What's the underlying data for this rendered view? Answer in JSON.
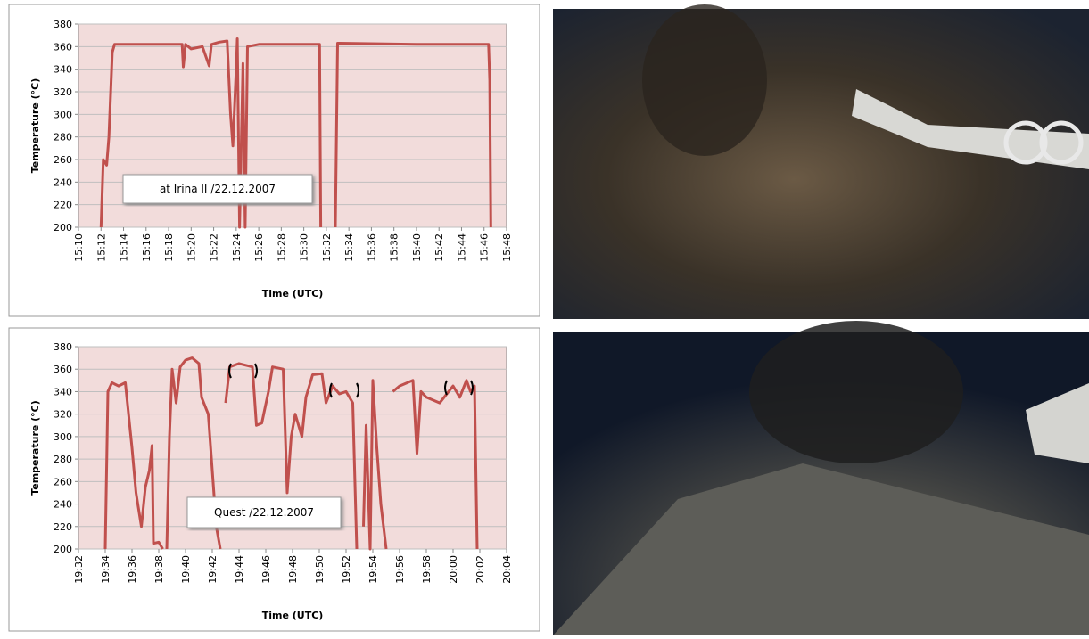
{
  "chart_data": [
    {
      "type": "line",
      "color": "#c0504d",
      "ylabel": "Temperature (°C)",
      "xlabel": "Time (UTC)",
      "annotation": "at Irina II /22.12.2007",
      "xlim": [
        910,
        948
      ],
      "ylim": [
        200,
        380
      ],
      "yticks": [
        200,
        220,
        240,
        260,
        280,
        300,
        320,
        340,
        360,
        380
      ],
      "xticks": [
        {
          "value": 910,
          "label": "15:10"
        },
        {
          "value": 912,
          "label": "15:12"
        },
        {
          "value": 914,
          "label": "15:14"
        },
        {
          "value": 916,
          "label": "15:16"
        },
        {
          "value": 918,
          "label": "15:18"
        },
        {
          "value": 920,
          "label": "15:20"
        },
        {
          "value": 922,
          "label": "15:22"
        },
        {
          "value": 924,
          "label": "15:24"
        },
        {
          "value": 926,
          "label": "15:26"
        },
        {
          "value": 928,
          "label": "15:28"
        },
        {
          "value": 930,
          "label": "15:30"
        },
        {
          "value": 932,
          "label": "15:32"
        },
        {
          "value": 934,
          "label": "15:34"
        },
        {
          "value": 936,
          "label": "15:36"
        },
        {
          "value": 938,
          "label": "15:38"
        },
        {
          "value": 940,
          "label": "15:40"
        },
        {
          "value": 942,
          "label": "15:42"
        },
        {
          "value": 944,
          "label": "15:44"
        },
        {
          "value": 946,
          "label": "15:46"
        },
        {
          "value": 948,
          "label": "15:48"
        }
      ],
      "x": [
        912.0,
        912.2,
        912.5,
        912.7,
        913.0,
        913.2,
        919.2,
        919.3,
        919.5,
        920.0,
        921.0,
        921.6,
        921.8,
        922.5,
        923.2,
        923.5,
        923.7,
        924.0,
        924.1,
        924.3,
        924.6,
        924.8,
        925.0,
        926.0,
        931.4,
        931.5,
        932.0,
        932.8,
        933.0,
        940.0,
        946.4,
        946.5,
        946.6
      ],
      "values": [
        200,
        260,
        255,
        280,
        355,
        362,
        362,
        342,
        362,
        358,
        360,
        343,
        362,
        364,
        365,
        300,
        272,
        340,
        367,
        200,
        345,
        200,
        360,
        362,
        362,
        200,
        null,
        200,
        363,
        362,
        362,
        330,
        200
      ]
    },
    {
      "type": "line",
      "color": "#c0504d",
      "ylabel": "Temperature (°C)",
      "xlabel": "Time (UTC)",
      "annotation": "Quest /22.12.2007",
      "xlim": [
        1172,
        1204
      ],
      "ylim": [
        200,
        380
      ],
      "yticks": [
        200,
        220,
        240,
        260,
        280,
        300,
        320,
        340,
        360,
        380
      ],
      "xticks": [
        {
          "value": 1172,
          "label": "19:32"
        },
        {
          "value": 1174,
          "label": "19:34"
        },
        {
          "value": 1176,
          "label": "19:36"
        },
        {
          "value": 1178,
          "label": "19:38"
        },
        {
          "value": 1180,
          "label": "19:40"
        },
        {
          "value": 1182,
          "label": "19:42"
        },
        {
          "value": 1184,
          "label": "19:44"
        },
        {
          "value": 1186,
          "label": "19:46"
        },
        {
          "value": 1188,
          "label": "19:48"
        },
        {
          "value": 1190,
          "label": "19:50"
        },
        {
          "value": 1192,
          "label": "19:52"
        },
        {
          "value": 1194,
          "label": "19:54"
        },
        {
          "value": 1196,
          "label": "19:56"
        },
        {
          "value": 1198,
          "label": "19:58"
        },
        {
          "value": 1200,
          "label": "20:00"
        },
        {
          "value": 1202,
          "label": "20:02"
        },
        {
          "value": 1204,
          "label": "20:04"
        }
      ],
      "x": [
        1174.0,
        1174.2,
        1174.5,
        1175.0,
        1175.5,
        1176.0,
        1176.3,
        1176.7,
        1177.0,
        1177.3,
        1177.5,
        1177.6,
        1178.0,
        1178.3,
        1178.45,
        1178.6,
        1178.8,
        1179.0,
        1179.3,
        1179.6,
        1180.0,
        1180.5,
        1181.0,
        1181.2,
        1181.7,
        1182.0,
        1182.3,
        1182.6,
        1182.8,
        1183.0,
        1183.3,
        1184.0,
        1185.0,
        1185.3,
        1185.7,
        1186.2,
        1186.5,
        1187.3,
        1187.6,
        1187.9,
        1188.2,
        1188.7,
        1189.0,
        1189.5,
        1190.2,
        1190.5,
        1191.0,
        1191.5,
        1192.0,
        1192.5,
        1192.8,
        1193.0,
        1193.3,
        1193.5,
        1193.8,
        1194.0,
        1194.3,
        1194.6,
        1195.0,
        1195.2,
        1195.5,
        1196.0,
        1197.0,
        1197.3,
        1197.6,
        1198.0,
        1199.0,
        1200.0,
        1200.5,
        1201.0,
        1201.3,
        1201.6,
        1201.8
      ],
      "values": [
        200,
        340,
        348,
        345,
        348,
        290,
        250,
        220,
        255,
        270,
        292,
        205,
        206,
        200,
        null,
        200,
        300,
        360,
        330,
        362,
        368,
        370,
        365,
        335,
        320,
        270,
        220,
        200,
        null,
        330,
        362,
        365,
        362,
        310,
        312,
        340,
        362,
        360,
        250,
        300,
        320,
        300,
        335,
        355,
        356,
        330,
        345,
        338,
        340,
        330,
        200,
        null,
        220,
        310,
        200,
        350,
        290,
        240,
        200,
        null,
        340,
        345,
        350,
        285,
        340,
        335,
        330,
        345,
        335,
        350,
        340,
        345,
        200
      ]
    }
  ]
}
